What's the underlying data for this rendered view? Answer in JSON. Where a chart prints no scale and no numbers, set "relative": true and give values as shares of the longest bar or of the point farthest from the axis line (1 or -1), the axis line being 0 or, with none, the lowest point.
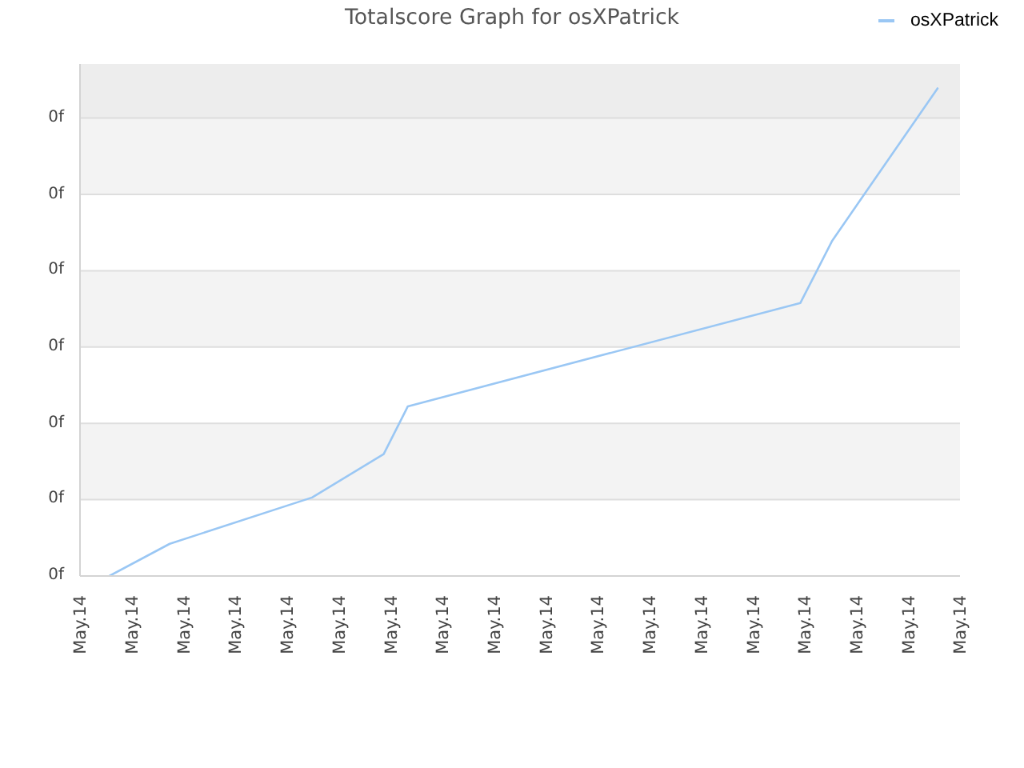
{
  "chart_data": {
    "type": "line",
    "title": "Totalscore Graph for osXPatrick",
    "relative": true,
    "x": [
      "--05-14T00:34",
      "--05-14T01:44",
      "--05-14T04:29",
      "--05-14T05:52",
      "--05-14T06:20",
      "--05-14T13:55",
      "--05-14T14:32",
      "--05-14T16:34"
    ],
    "series": [
      {
        "name": "osXPatrick",
        "color": "#9ac7f4",
        "values": [
          0,
          0.066,
          0.161,
          0.25,
          0.348,
          0.56,
          0.688,
          1
        ]
      }
    ],
    "xlim": [
      "--05-14T00:00",
      "--05-14T17:00"
    ],
    "xticks": [
      {
        "value": "--05-14T00:00",
        "label": "May.14"
      },
      {
        "value": "--05-14T01:00",
        "label": "May.14"
      },
      {
        "value": "--05-14T02:00",
        "label": "May.14"
      },
      {
        "value": "--05-14T03:00",
        "label": "May.14"
      },
      {
        "value": "--05-14T04:00",
        "label": "May.14"
      },
      {
        "value": "--05-14T05:00",
        "label": "May.14"
      },
      {
        "value": "--05-14T06:00",
        "label": "May.14"
      },
      {
        "value": "--05-14T07:00",
        "label": "May.14"
      },
      {
        "value": "--05-14T08:00",
        "label": "May.14"
      },
      {
        "value": "--05-14T09:00",
        "label": "May.14"
      },
      {
        "value": "--05-14T10:00",
        "label": "May.14"
      },
      {
        "value": "--05-14T11:00",
        "label": "May.14"
      },
      {
        "value": "--05-14T12:00",
        "label": "May.14"
      },
      {
        "value": "--05-14T13:00",
        "label": "May.14"
      },
      {
        "value": "--05-14T14:00",
        "label": "May.14"
      },
      {
        "value": "--05-14T15:00",
        "label": "May.14"
      },
      {
        "value": "--05-14T16:00",
        "label": "May.14"
      },
      {
        "value": "--05-14T17:00",
        "label": "May.14"
      }
    ],
    "annotations": [
      "0f",
      "0f",
      "0f",
      "0f",
      "0f",
      "0f",
      "0f"
    ],
    "grid": "y",
    "legend": "top right",
    "marker": "none",
    "line_style": "solid"
  }
}
